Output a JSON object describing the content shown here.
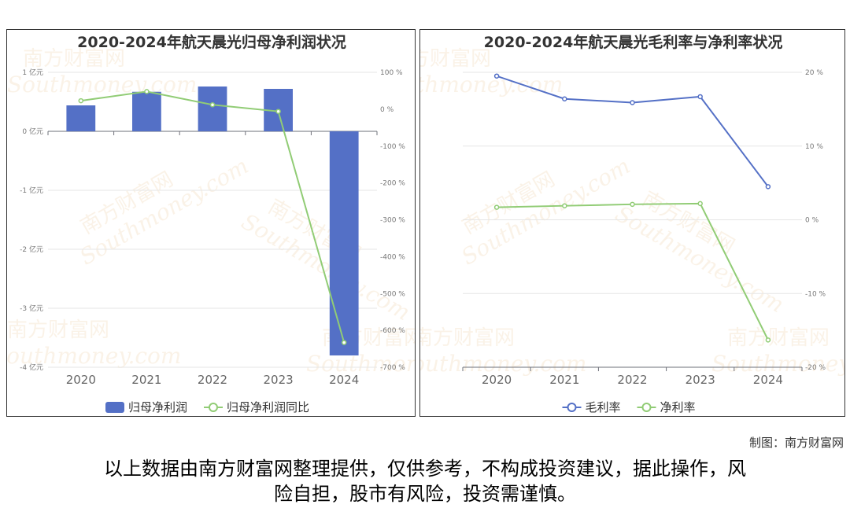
{
  "chart_data": [
    {
      "type": "bar",
      "title": "2020-2024年航天晨光归母净利润状况",
      "categories": [
        "2020",
        "2021",
        "2022",
        "2023",
        "2024"
      ],
      "y_left": {
        "ylim": [
          -4,
          1
        ],
        "ticks": [
          1,
          0,
          -1,
          -2,
          -3,
          -4
        ],
        "tick_labels": [
          "1 亿元",
          "0 亿元",
          "-1 亿元",
          "-2 亿元",
          "-3 亿元",
          "-4 亿元"
        ]
      },
      "y_right": {
        "ylim": [
          -700,
          100
        ],
        "ticks": [
          100,
          0,
          -100,
          -200,
          -300,
          -400,
          -500,
          -600,
          -700
        ],
        "tick_labels": [
          "100 %",
          "0 %",
          "-100 %",
          "-200 %",
          "-300 %",
          "-400 %",
          "-500 %",
          "-600 %",
          "-700 %"
        ]
      },
      "series": [
        {
          "name": "归母净利润",
          "kind": "bar",
          "axis": "left",
          "color": "#5470c6",
          "values": [
            0.44,
            0.67,
            0.76,
            0.72,
            -3.8
          ]
        },
        {
          "name": "归母净利润同比",
          "kind": "line",
          "axis": "right",
          "color": "#91cc75",
          "values": [
            23,
            48,
            12,
            -6,
            -633
          ]
        }
      ],
      "legend_position": "bottom-center",
      "grid": true
    },
    {
      "type": "line",
      "title": "2020-2024年航天晨光毛利率与净利率状况",
      "categories": [
        "2020",
        "2021",
        "2022",
        "2023",
        "2024"
      ],
      "y_right": {
        "ylim": [
          -20,
          20
        ],
        "ticks": [
          20,
          10,
          0,
          -10,
          -20
        ],
        "tick_labels": [
          "20 %",
          "10 %",
          "0 %",
          "-10 %",
          "-20 %"
        ]
      },
      "series": [
        {
          "name": "毛利率",
          "kind": "line",
          "axis": "right",
          "color": "#5470c6",
          "values": [
            19.5,
            16.4,
            15.9,
            16.7,
            4.5
          ]
        },
        {
          "name": "净利率",
          "kind": "line",
          "axis": "right",
          "color": "#91cc75",
          "values": [
            1.7,
            1.9,
            2.1,
            2.2,
            -16.3
          ]
        }
      ],
      "legend_position": "bottom-center",
      "grid": true
    }
  ],
  "watermark": {
    "cn": "南方财富网",
    "en": "Southmoney.com"
  },
  "credit": "制图：南方财富网",
  "disclaimer": {
    "line1": "以上数据由南方财富网整理提供，仅供参考，不构成投资建议，据此操作，风",
    "line2": "险自担，股市有风险，投资需谨慎。"
  }
}
